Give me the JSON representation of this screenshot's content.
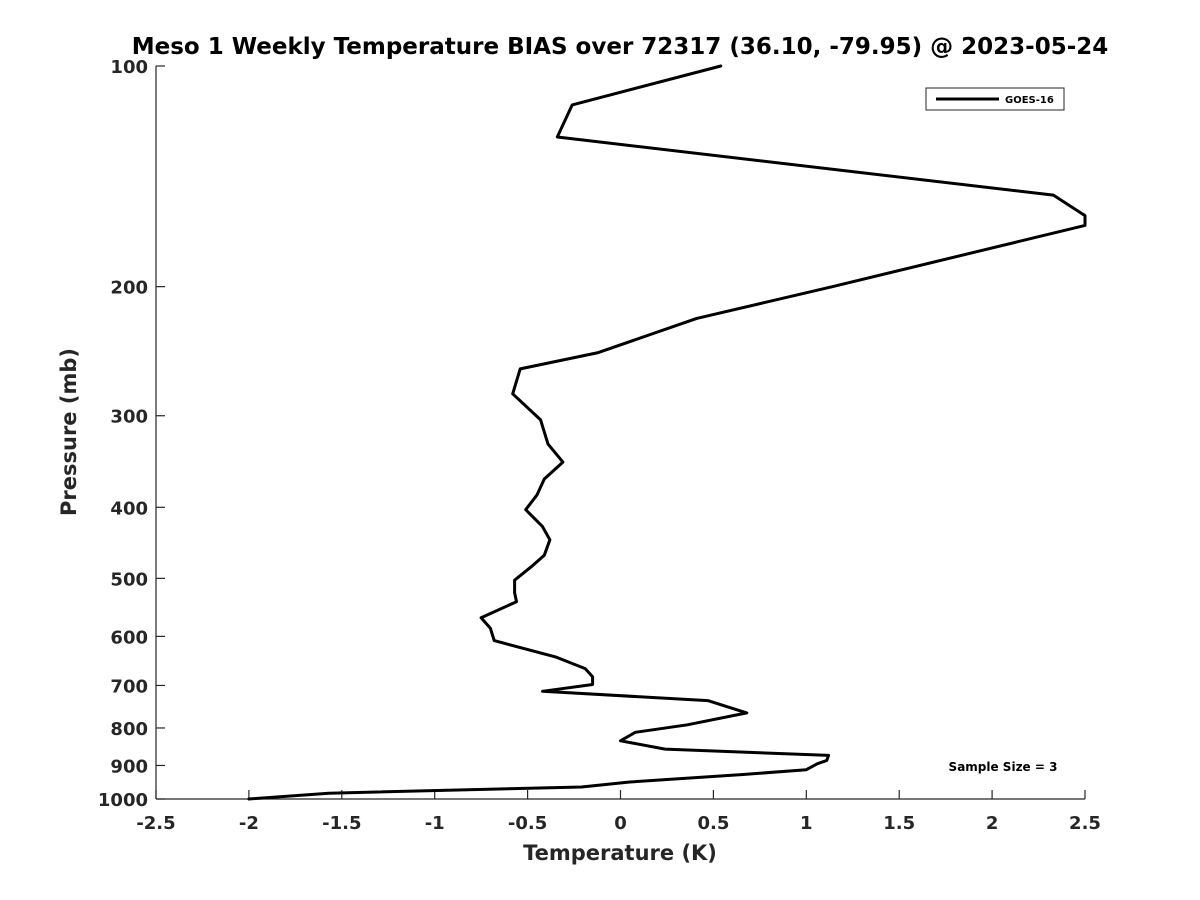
{
  "chart_data": {
    "type": "line",
    "title": "Meso 1 Weekly Temperature BIAS over 72317 (36.10, -79.95) @ 2023-05-24",
    "xlabel": "Temperature (K)",
    "ylabel": "Pressure (mb)",
    "xlim": [
      -2.5,
      2.5
    ],
    "ylim": [
      100,
      1000
    ],
    "y_scale": "log",
    "y_reversed": true,
    "x_ticks": [
      -2.5,
      -2,
      -1.5,
      -1,
      -0.5,
      0,
      0.5,
      1,
      1.5,
      2,
      2.5
    ],
    "x_tick_labels": [
      "-2.5",
      "-2",
      "-1.5",
      "-1",
      "-0.5",
      "0",
      "0.5",
      "1",
      "1.5",
      "2",
      "2.5"
    ],
    "y_ticks": [
      100,
      200,
      300,
      400,
      500,
      600,
      700,
      800,
      900,
      1000
    ],
    "y_tick_labels": [
      "100",
      "200",
      "300",
      "400",
      "500",
      "600",
      "700",
      "800",
      "900",
      "1000"
    ],
    "grid": false,
    "legend_position": "top-right",
    "annotation": "Sample Size = 3",
    "series_color": "#000000",
    "series": [
      {
        "name": "GOES-16",
        "x": [
          0.54,
          -0.26,
          -0.34,
          2.33,
          2.5,
          2.5,
          1.14,
          0.41,
          -0.12,
          -0.54,
          -0.58,
          -0.43,
          -0.39,
          -0.31,
          -0.41,
          -0.45,
          -0.51,
          -0.42,
          -0.38,
          -0.41,
          -0.48,
          -0.57,
          -0.57,
          -0.56,
          -0.75,
          -0.7,
          -0.68,
          -0.35,
          -0.19,
          -0.15,
          -0.15,
          -0.42,
          0.47,
          0.68,
          0.36,
          0.08,
          0.0,
          0.24,
          1.12,
          1.11,
          1.06,
          1.0,
          0.66,
          0.05,
          -0.21,
          -1.57,
          -2.0
        ],
        "y": [
          100,
          113,
          125,
          150,
          160,
          165,
          200,
          221,
          246,
          259,
          280,
          304,
          328,
          347,
          366,
          385,
          403,
          425,
          443,
          465,
          482,
          503,
          523,
          538,
          566,
          585,
          608,
          640,
          664,
          681,
          698,
          713,
          734,
          763,
          792,
          811,
          833,
          855,
          872,
          886,
          895,
          912,
          926,
          948,
          963,
          982,
          1000
        ]
      }
    ]
  }
}
